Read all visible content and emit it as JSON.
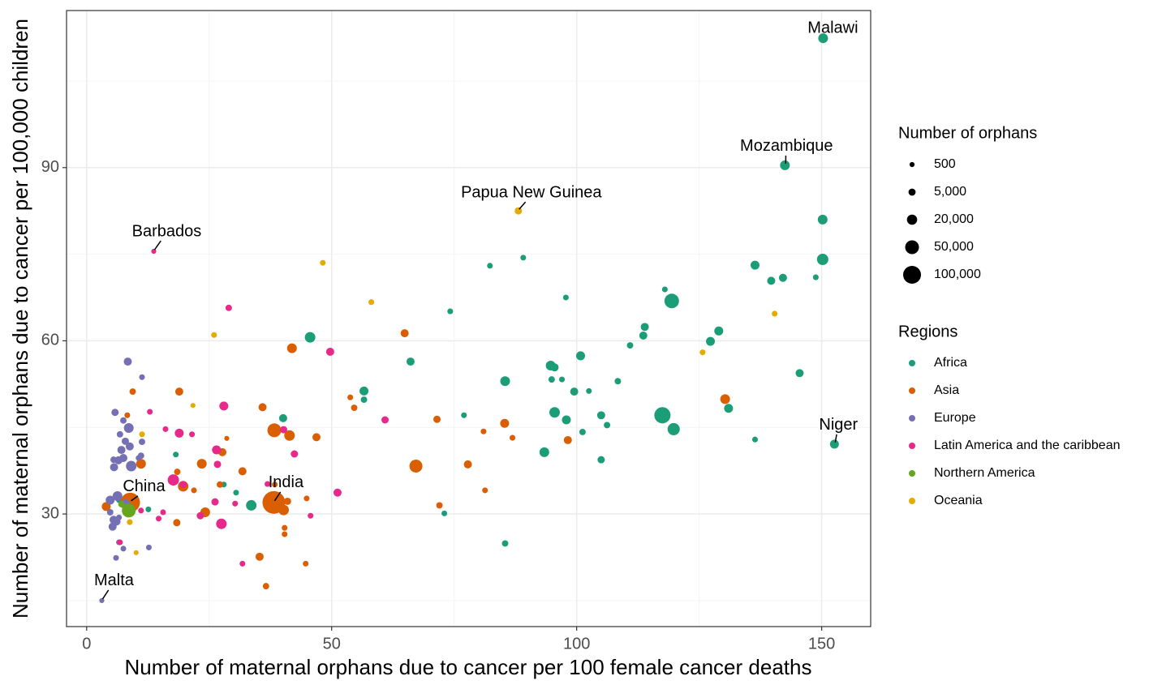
{
  "chart_data": {
    "type": "scatter",
    "x_label": "Number of maternal orphans due to cancer per 100 female cancer deaths",
    "y_label": "Number of maternal orphans due to cancer per 100,000 children",
    "xlim": [
      -4.1,
      160
    ],
    "ylim": [
      10.5,
      117.2
    ],
    "xticks": [
      0,
      50,
      100,
      150
    ],
    "yticks": [
      30,
      60,
      90
    ],
    "xminor": [
      25,
      75,
      125
    ],
    "yminor": [
      15,
      45,
      75,
      105
    ],
    "grid": true,
    "size_legend": {
      "title": "Number of orphans",
      "values": [
        500,
        {
          "value": 5000,
          "label": "5,000"
        },
        {
          "value": 20000,
          "label": "20,000"
        },
        {
          "value": 50000,
          "label": "50,000"
        },
        {
          "value": 100000,
          "label": "100,000"
        }
      ]
    },
    "legend_title": "Regions",
    "legend_position": "right",
    "series": [
      {
        "name": "Africa",
        "color": "#1b9e77",
        "x": [
          150.3,
          142.5,
          150.2,
          150.2,
          136.4,
          139.7,
          142.1,
          148.8,
          119.4,
          118.0,
          113.9,
          113.6,
          129.0,
          127.3,
          110.9,
          100.8,
          145.5,
          108.4,
          94.7,
          95.5,
          94.9,
          97.0,
          99.5,
          102.5,
          85.4,
          117.5,
          119.8,
          131.0,
          95.5,
          97.9,
          105.0,
          106.2,
          101.2,
          93.4,
          105.0,
          136.4,
          152.6,
          77.0,
          74.2,
          82.3,
          89.1,
          97.8,
          66.1,
          56.6,
          56.6,
          45.6,
          40.1,
          33.6,
          30.5,
          28.0,
          18.2,
          12.6,
          73.0,
          85.4,
          6.6
        ],
        "values": [
          112.4,
          90.4,
          81.0,
          74.1,
          73.1,
          70.4,
          70.9,
          71.0,
          66.9,
          68.9,
          62.4,
          60.9,
          61.7,
          59.9,
          59.2,
          57.4,
          54.4,
          53.0,
          55.7,
          55.4,
          53.3,
          53.3,
          51.2,
          51.3,
          53.0,
          47.1,
          44.7,
          48.3,
          47.6,
          46.3,
          47.1,
          45.4,
          44.2,
          40.7,
          39.4,
          42.9,
          42.1,
          47.1,
          65.1,
          73.0,
          74.4,
          67.5,
          56.4,
          51.3,
          49.8,
          60.6,
          46.6,
          31.5,
          33.7,
          35.1,
          40.3,
          30.8,
          30.1,
          24.9,
          32.4
        ],
        "sizes": [
          17000,
          17000,
          17000,
          28000,
          12500,
          8500,
          8500,
          1500,
          58000,
          1500,
          8500,
          8500,
          12500,
          12500,
          3000,
          12500,
          8500,
          3000,
          17000,
          8500,
          3000,
          1500,
          8500,
          1500,
          17000,
          78000,
          35000,
          12500,
          22000,
          12500,
          8500,
          3000,
          3000,
          17000,
          5500,
          1500,
          12500,
          1500,
          1500,
          1500,
          1500,
          1500,
          8500,
          12500,
          3000,
          22000,
          8500,
          22000,
          1500,
          1500,
          1500,
          1500,
          1500,
          3000,
          1500
        ]
      },
      {
        "name": "Asia",
        "color": "#d95f02",
        "x": [
          64.9,
          41.9,
          130.3,
          53.8,
          54.6,
          71.5,
          85.3,
          86.9,
          81.0,
          98.2,
          67.2,
          77.8,
          81.3,
          72.0,
          35.9,
          38.3,
          41.4,
          46.9,
          18.9,
          28.6,
          23.5,
          27.7,
          31.8,
          38.4,
          38.2,
          41.0,
          40.2,
          44.9,
          8.9,
          4.0,
          11.1,
          9.4,
          18.5,
          19.7,
          21.9,
          24.2,
          18.4,
          27.2,
          35.3,
          36.6,
          40.4,
          40.4,
          44.7,
          8.3
        ],
        "values": [
          61.3,
          58.7,
          49.9,
          50.2,
          48.4,
          46.4,
          45.7,
          43.2,
          44.3,
          42.8,
          38.3,
          38.6,
          34.1,
          31.5,
          48.5,
          44.5,
          43.6,
          43.3,
          51.2,
          43.1,
          38.7,
          40.7,
          37.4,
          35.1,
          32.0,
          32.2,
          30.7,
          32.7,
          32.0,
          31.3,
          38.7,
          51.2,
          37.3,
          34.8,
          34.1,
          30.3,
          28.5,
          35.1,
          22.6,
          17.5,
          27.6,
          26.5,
          21.4,
          47.1
        ],
        "sizes": [
          8500,
          17000,
          17000,
          1500,
          3000,
          5500,
          12500,
          1500,
          1500,
          8500,
          42000,
          8500,
          1500,
          3000,
          8500,
          50000,
          22000,
          8500,
          8500,
          500,
          17000,
          8500,
          8500,
          1500,
          183000,
          5500,
          22000,
          1500,
          125000,
          12500,
          17000,
          3000,
          3000,
          22000,
          1500,
          17000,
          5500,
          3000,
          8500,
          3000,
          1500,
          1500,
          1500,
          1500
        ]
      },
      {
        "name": "Europe",
        "color": "#7570b3",
        "x": [
          8.4,
          11.3,
          5.8,
          7.5,
          8.6,
          6.8,
          7.9,
          7.1,
          8.8,
          5.5,
          6.5,
          7.5,
          5.6,
          9.1,
          10.6,
          11.3,
          11.1,
          4.8,
          6.3,
          4.8,
          5.5,
          5.3,
          6.1,
          6.6,
          7.9,
          6.6,
          7.5,
          6.0,
          12.7,
          3.1
        ],
        "values": [
          56.4,
          53.7,
          47.6,
          46.2,
          44.9,
          43.8,
          42.6,
          41.1,
          41.7,
          39.4,
          39.3,
          39.7,
          38.1,
          38.3,
          39.7,
          42.5,
          40.1,
          32.4,
          33.1,
          30.3,
          29.0,
          27.8,
          28.7,
          29.4,
          31.7,
          25.1,
          24.0,
          22.4,
          24.2,
          15.0
        ],
        "sizes": [
          8500,
          1500,
          5500,
          3000,
          17000,
          3000,
          5500,
          8500,
          8500,
          3000,
          8500,
          8500,
          8500,
          22000,
          1500,
          3000,
          3000,
          12500,
          17000,
          3000,
          8500,
          8500,
          8500,
          1500,
          17000,
          1500,
          1500,
          1500,
          1500,
          500
        ]
      },
      {
        "name": "Latin America and the caribbean",
        "color": "#e7298a",
        "x": [
          13.7,
          29.0,
          49.7,
          60.9,
          51.2,
          28.0,
          12.9,
          16.1,
          18.9,
          21.5,
          40.2,
          42.4,
          26.5,
          26.7,
          17.7,
          19.7,
          26.2,
          30.3,
          27.5,
          15.6,
          14.7,
          23.2,
          45.7,
          31.8,
          6.8,
          11.1,
          36.9
        ],
        "values": [
          75.5,
          65.7,
          58.1,
          46.3,
          33.7,
          48.7,
          47.7,
          44.7,
          44.0,
          43.8,
          44.6,
          40.4,
          41.1,
          38.6,
          35.9,
          35.1,
          32.1,
          31.8,
          28.3,
          30.3,
          29.2,
          29.7,
          29.7,
          21.4,
          25.1,
          30.6,
          35.2
        ],
        "sizes": [
          500,
          3000,
          8500,
          5500,
          8500,
          12500,
          1500,
          1500,
          12500,
          1500,
          5500,
          5500,
          12500,
          5500,
          28000,
          5500,
          5500,
          1500,
          22000,
          1500,
          1500,
          5500,
          1500,
          1500,
          1500,
          1500,
          1500
        ]
      },
      {
        "name": "Northern America",
        "color": "#66a61e",
        "x": [
          8.6,
          7.1
        ],
        "values": [
          30.6,
          31.7
        ],
        "sizes": [
          50000,
          3000
        ]
      },
      {
        "name": "Oceania",
        "color": "#e6ab02",
        "x": [
          88.1,
          48.2,
          58.1,
          26.0,
          140.4,
          125.7,
          21.7,
          11.3,
          8.8,
          10.1
        ],
        "values": [
          82.5,
          73.5,
          66.7,
          61.0,
          64.7,
          58.0,
          48.8,
          43.8,
          28.6,
          23.3
        ],
        "sizes": [
          5500,
          1500,
          1500,
          1500,
          1500,
          1500,
          500,
          1500,
          1500,
          500
        ]
      }
    ],
    "annotations": [
      {
        "label": "Malawi",
        "x": 150.3,
        "y": 112.4
      },
      {
        "label": "Mozambique",
        "x": 142.5,
        "y": 90.4
      },
      {
        "label": "Papua New Guinea",
        "x": 88.1,
        "y": 82.5
      },
      {
        "label": "Barbados",
        "x": 13.7,
        "y": 75.5
      },
      {
        "label": "Niger",
        "x": 152.6,
        "y": 42.1
      },
      {
        "label": "India",
        "x": 38.2,
        "y": 32.0
      },
      {
        "label": "China",
        "x": 8.9,
        "y": 32.0
      },
      {
        "label": "Malta",
        "x": 3.1,
        "y": 15.0
      }
    ]
  }
}
